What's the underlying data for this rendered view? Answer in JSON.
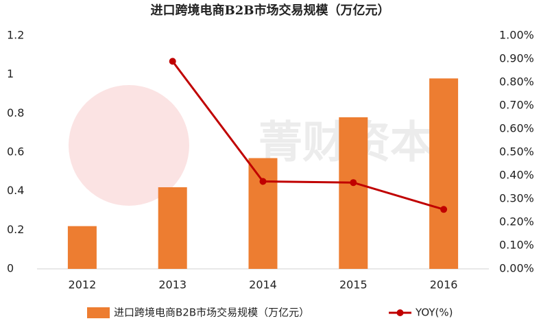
{
  "chart_data": {
    "type": "bar-line",
    "title": "进口跨境电商B2B市场交易规模（万亿元）",
    "watermark": "菁财资本",
    "categories": [
      "2012",
      "2013",
      "2014",
      "2015",
      "2016"
    ],
    "series": [
      {
        "name": "进口跨境电商B2B市场交易规模（万亿元）",
        "type": "bar",
        "color": "#ed7d31",
        "values": [
          0.22,
          0.42,
          0.57,
          0.78,
          0.98
        ]
      },
      {
        "name": "YOY(%)",
        "type": "line",
        "axis": "y2",
        "color": "#c00000",
        "values": [
          null,
          0.89,
          0.375,
          0.37,
          0.255
        ]
      }
    ],
    "ylim": [
      0,
      1.2
    ],
    "yticks": [
      0,
      0.2,
      0.4,
      0.6,
      0.8,
      1,
      1.2
    ],
    "y2lim": [
      0,
      1.0
    ],
    "y2ticks": [
      {
        "value": 0,
        "label": "0.00%"
      },
      {
        "value": 0.1,
        "label": "0.10%"
      },
      {
        "value": 0.2,
        "label": "0.20%"
      },
      {
        "value": 0.3,
        "label": "0.30%"
      },
      {
        "value": 0.4,
        "label": "0.40%"
      },
      {
        "value": 0.5,
        "label": "0.50%"
      },
      {
        "value": 0.6,
        "label": "0.60%"
      },
      {
        "value": 0.7,
        "label": "0.70%"
      },
      {
        "value": 0.8,
        "label": "0.80%"
      },
      {
        "value": 0.9,
        "label": "0.90%"
      },
      {
        "value": 1.0,
        "label": "1.00%"
      }
    ]
  }
}
